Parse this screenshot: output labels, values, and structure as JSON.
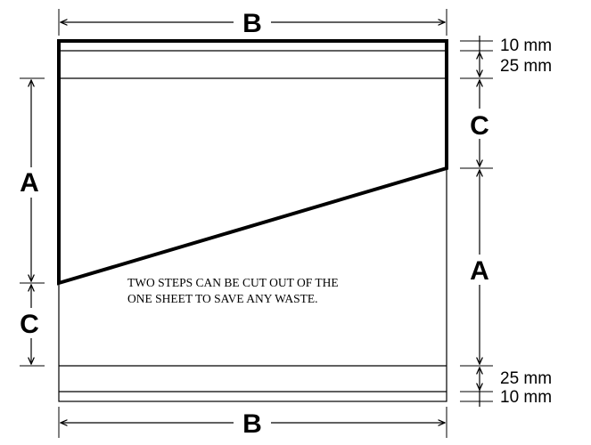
{
  "diagram": {
    "dimensions": {
      "top_width": "B",
      "bottom_width": "B",
      "left_upper": "A",
      "left_lower": "C",
      "right_upper": "C",
      "right_lower": "A",
      "top_strip_1": "10 mm",
      "top_strip_2": "25 mm",
      "bottom_strip_1": "25 mm",
      "bottom_strip_2": "10 mm"
    },
    "note_line_1": "TWO STEPS CAN BE CUT OUT OF THE",
    "note_line_2": "ONE SHEET TO SAVE ANY WASTE."
  }
}
